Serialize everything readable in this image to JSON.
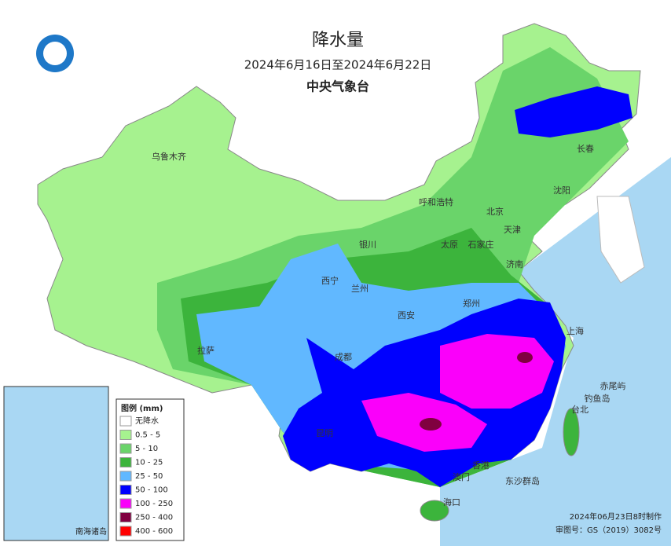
{
  "header": {
    "title": "降水量",
    "period": "2024年6月16日至2024年6月22日",
    "agency": "中央气象台"
  },
  "legend": {
    "title": "图例 (mm)",
    "items": [
      {
        "label": "无降水",
        "color": "#ffffff"
      },
      {
        "label": "0.5 - 5",
        "color": "#a6f28f"
      },
      {
        "label": "5 - 10",
        "color": "#6ad46a"
      },
      {
        "label": "10 - 25",
        "color": "#3cb43c"
      },
      {
        "label": "25 - 50",
        "color": "#61b8ff"
      },
      {
        "label": "50 - 100",
        "color": "#0000fe"
      },
      {
        "label": "100 - 250",
        "color": "#fa00fa"
      },
      {
        "label": "250 - 400",
        "color": "#800040"
      },
      {
        "label": "400 - 600",
        "color": "#ff0000"
      }
    ]
  },
  "cities": [
    "乌鲁木齐",
    "呼和浩特",
    "北京",
    "天津",
    "沈阳",
    "长春",
    "银川",
    "太原",
    "石家庄",
    "济南",
    "西宁",
    "兰州",
    "西安",
    "郑州",
    "拉萨",
    "成都",
    "上海",
    "台北",
    "昆明",
    "香港",
    "澳门",
    "海口",
    "东沙群岛",
    "钓鱼岛",
    "赤尾屿"
  ],
  "inset": {
    "label": "南海诸岛"
  },
  "footer": {
    "made": "2024年06月23日8时制作",
    "approval": "审图号：GS（2019）3082号"
  }
}
